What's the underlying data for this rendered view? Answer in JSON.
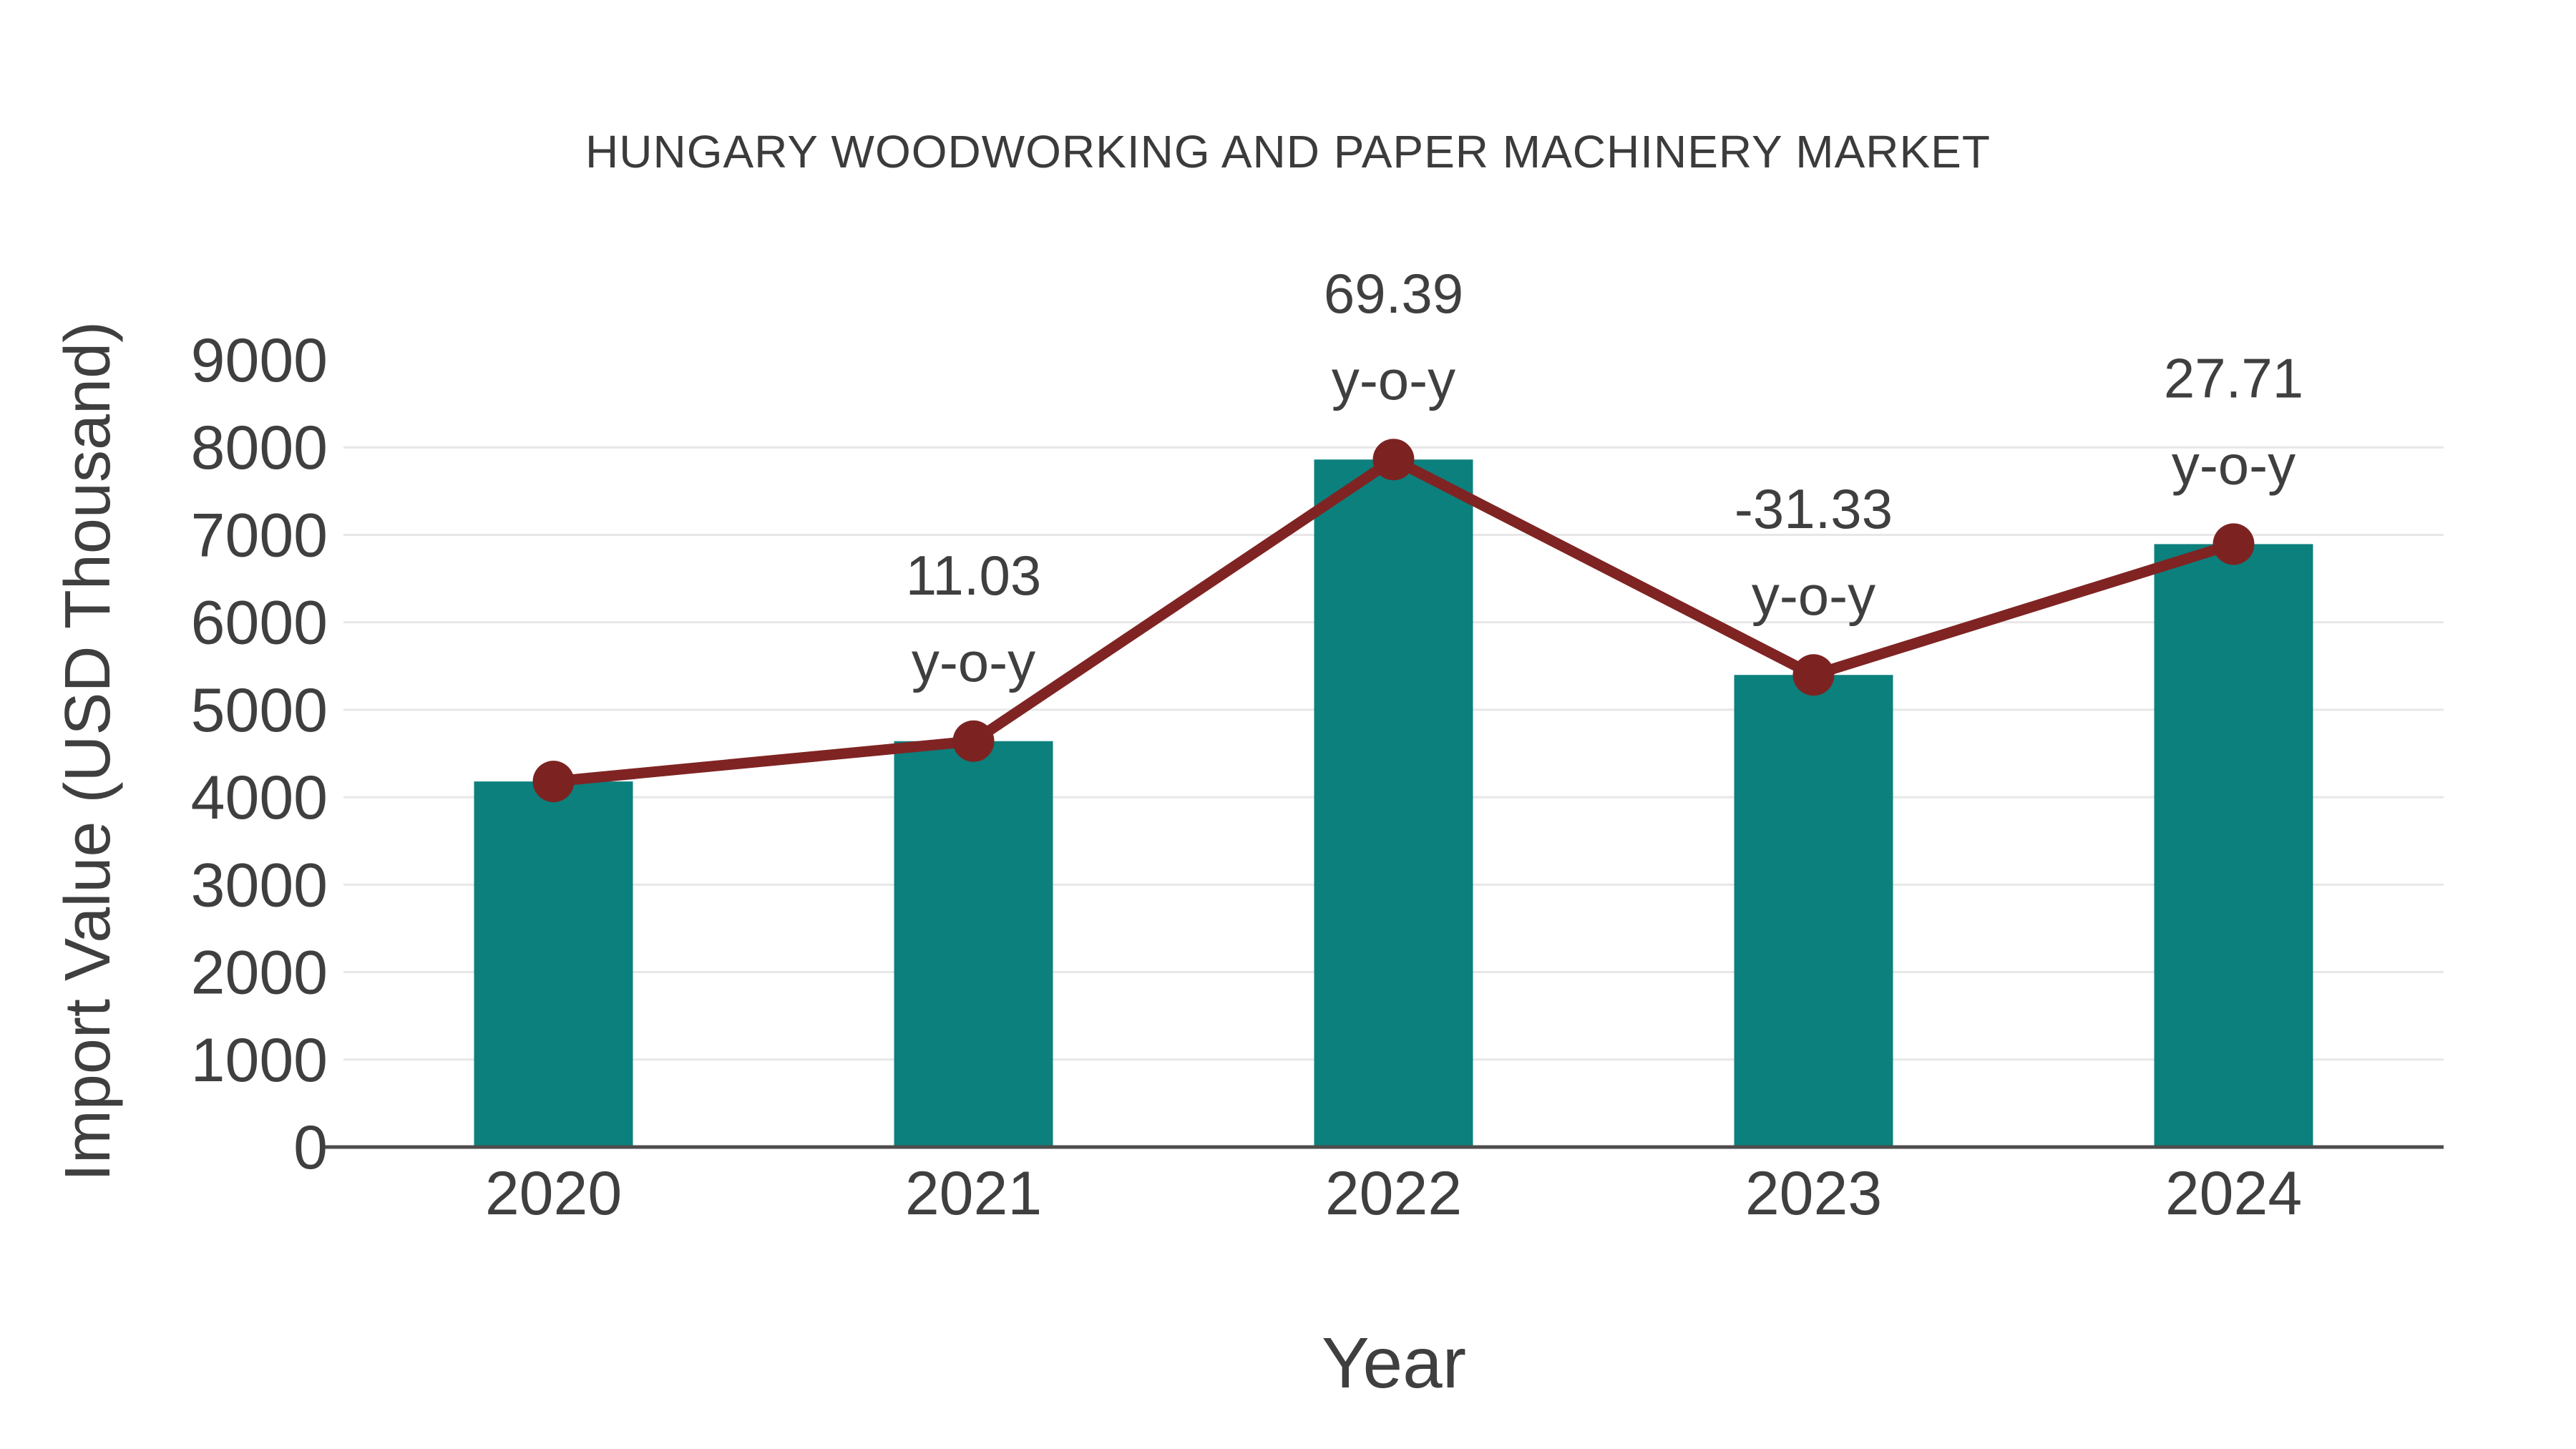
{
  "title": "HUNGARY WOODWORKING AND PAPER MACHINERY MARKET",
  "axis": {
    "xlabel": "Year",
    "ylabel": "Import Value (USD Thousand)"
  },
  "colors": {
    "bar": "#0c807d",
    "line": "#7f2423",
    "marker": "#7c2322",
    "grid": "#e7e7e7",
    "axis_line": "#4d4d4d",
    "text": "#3f3f3f"
  },
  "chart_data": {
    "type": "bar",
    "subtype": "bar-with-line-overlay",
    "title": "HUNGARY WOODWORKING AND PAPER MACHINERY MARKET",
    "xlabel": "Year",
    "ylabel": "Import Value (USD Thousand)",
    "categories": [
      "2020",
      "2021",
      "2022",
      "2023",
      "2024"
    ],
    "series": [
      {
        "name": "Import Value (bars)",
        "type": "bar",
        "values": [
          4180,
          4641,
          7861,
          5398,
          6894
        ]
      },
      {
        "name": "Import Value (trend line)",
        "type": "line",
        "values": [
          4180,
          4641,
          7861,
          5398,
          6894
        ]
      }
    ],
    "annotations": [
      {
        "category": "2021",
        "line1": "11.03",
        "line2": "y-o-y"
      },
      {
        "category": "2022",
        "line1": "69.39",
        "line2": "y-o-y"
      },
      {
        "category": "2023",
        "line1": "-31.33",
        "line2": "y-o-y"
      },
      {
        "category": "2024",
        "line1": "27.71",
        "line2": "y-o-y"
      }
    ],
    "ylim": [
      0,
      9000
    ],
    "yticks": [
      0,
      1000,
      2000,
      3000,
      4000,
      5000,
      6000,
      7000,
      8000,
      9000
    ],
    "grid": "horizontal",
    "legend_position": "none"
  }
}
